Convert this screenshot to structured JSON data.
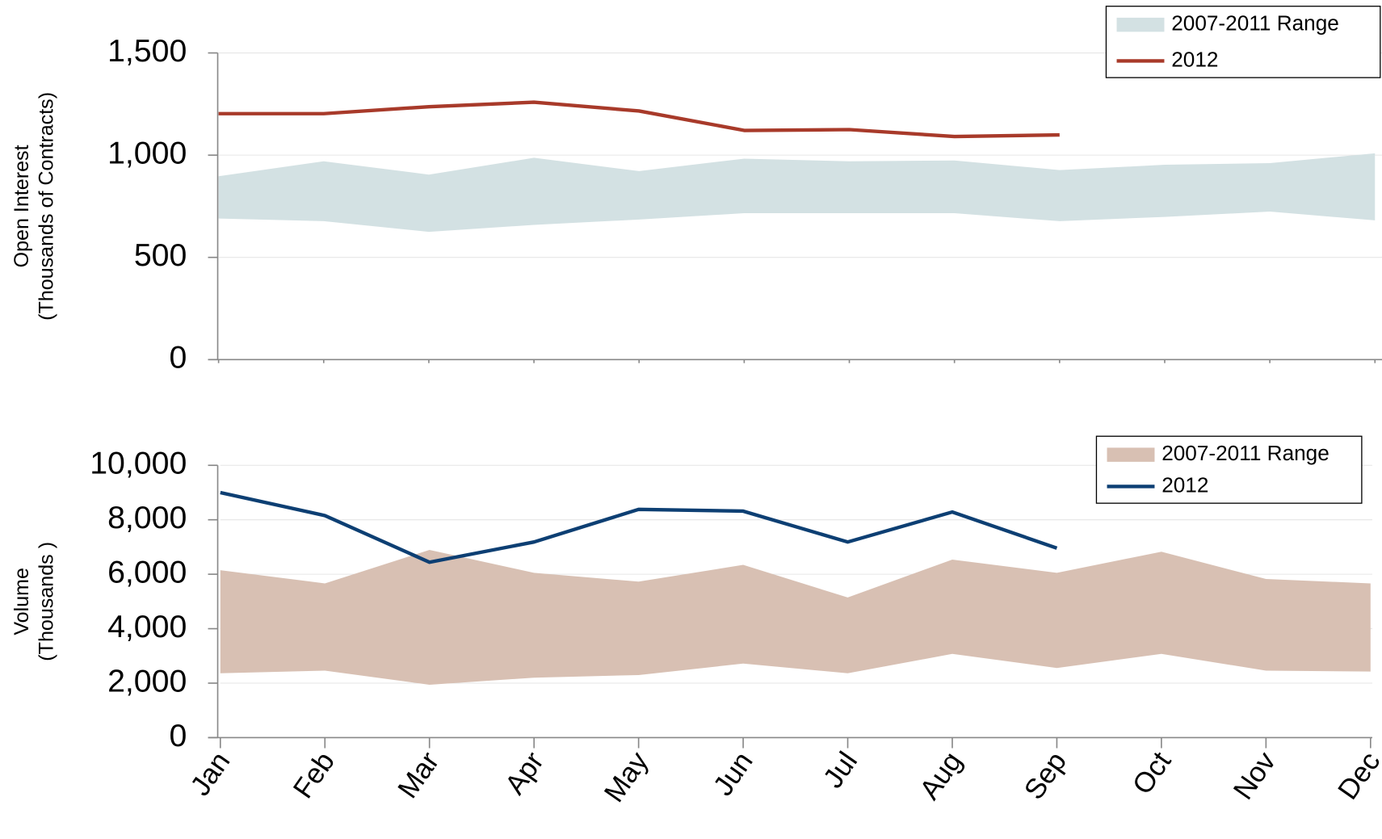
{
  "chart_data": [
    {
      "type": "line",
      "ylabel": [
        "Open Interest",
        "(Thousands of Contracts)"
      ],
      "ylim": [
        0,
        1500
      ],
      "yticks": [
        0,
        500,
        {
          "value": 1000,
          "label": "1,000"
        },
        {
          "value": 1500,
          "label": "1,500"
        }
      ],
      "grid": true,
      "legend": "upper right",
      "series": [
        {
          "name": "2007-2011 Range",
          "color": "#d3e1e3",
          "low": [
            690,
            677,
            625,
            659,
            685,
            716,
            716,
            716,
            677,
            698,
            724,
            681
          ],
          "high": [
            897,
            970,
            905,
            987,
            922,
            983,
            970,
            974,
            927,
            953,
            961,
            1009
          ]
        },
        {
          "name": "2012",
          "color": "#a83a2a",
          "values": [
            1203,
            1203,
            1237,
            1259,
            1216,
            1121,
            1125,
            1091,
            1099,
            null,
            null,
            null
          ]
        }
      ]
    },
    {
      "type": "line",
      "ylabel": [
        "Volume",
        "(Thousands )"
      ],
      "categories": [
        "Jan",
        "Feb",
        "Mar",
        "Apr",
        "May",
        "Jun",
        "Jul",
        "Aug",
        "Sep",
        "Oct",
        "Nov",
        "Dec"
      ],
      "ylim": [
        0,
        10000
      ],
      "yticks": [
        0,
        {
          "value": 2000,
          "label": "2,000"
        },
        {
          "value": 4000,
          "label": "4,000"
        },
        {
          "value": 6000,
          "label": "6,000"
        },
        {
          "value": 8000,
          "label": "8,000"
        },
        {
          "value": 10000,
          "label": "10,000"
        }
      ],
      "grid": true,
      "legend": "upper right",
      "series": [
        {
          "name": "2007-2011 Range",
          "color": "#d8c0b3",
          "low": [
            2362,
            2460,
            1942,
            2201,
            2298,
            2718,
            2362,
            3074,
            2557,
            3074,
            2460,
            2427
          ],
          "high": [
            6149,
            5663,
            6893,
            6052,
            5728,
            6343,
            5146,
            6537,
            6052,
            6828,
            5825,
            5663
          ]
        },
        {
          "name": "2012",
          "color": "#0d3f73",
          "values": [
            9000,
            8155,
            6440,
            7184,
            8382,
            8317,
            7184,
            8285,
            6958,
            null,
            null,
            null
          ]
        }
      ]
    }
  ]
}
